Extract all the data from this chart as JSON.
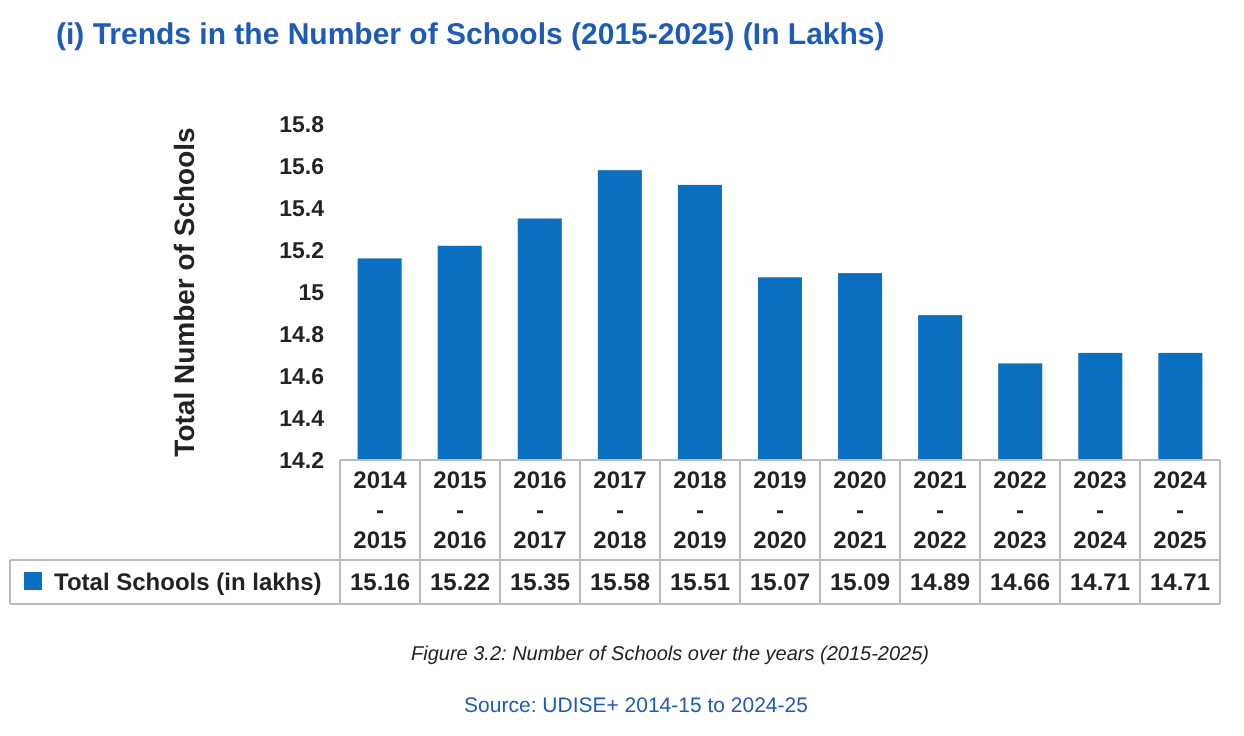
{
  "chart_data": {
    "type": "bar",
    "title": "(i)   Trends in the Number of Schools (2015-2025) (In Lakhs)",
    "ylabel": "Total Number of Schools",
    "categories": [
      "2014 - 2015",
      "2015 - 2016",
      "2016 - 2017",
      "2017 - 2018",
      "2018 - 2019",
      "2019 - 2020",
      "2020 - 2021",
      "2021 - 2022",
      "2022 - 2023",
      "2023 - 2024",
      "2024 - 2025"
    ],
    "series": [
      {
        "name": "Total Schools (in lakhs)",
        "color": "#0b6fc1",
        "values": [
          15.16,
          15.22,
          15.35,
          15.58,
          15.51,
          15.07,
          15.09,
          14.89,
          14.66,
          14.71,
          14.71
        ]
      }
    ],
    "ylim": [
      14.2,
      15.8
    ],
    "yticks": [
      14.2,
      14.4,
      14.6,
      14.8,
      15,
      15.2,
      15.4,
      15.6,
      15.8
    ],
    "data_labels": true,
    "legend": "bottom",
    "grid": false,
    "annotations": [
      "Figure 3.2: Number of Schools over the years (2015-2025)",
      "Source: UDISE+ 2014-15 to 2024-25"
    ]
  }
}
